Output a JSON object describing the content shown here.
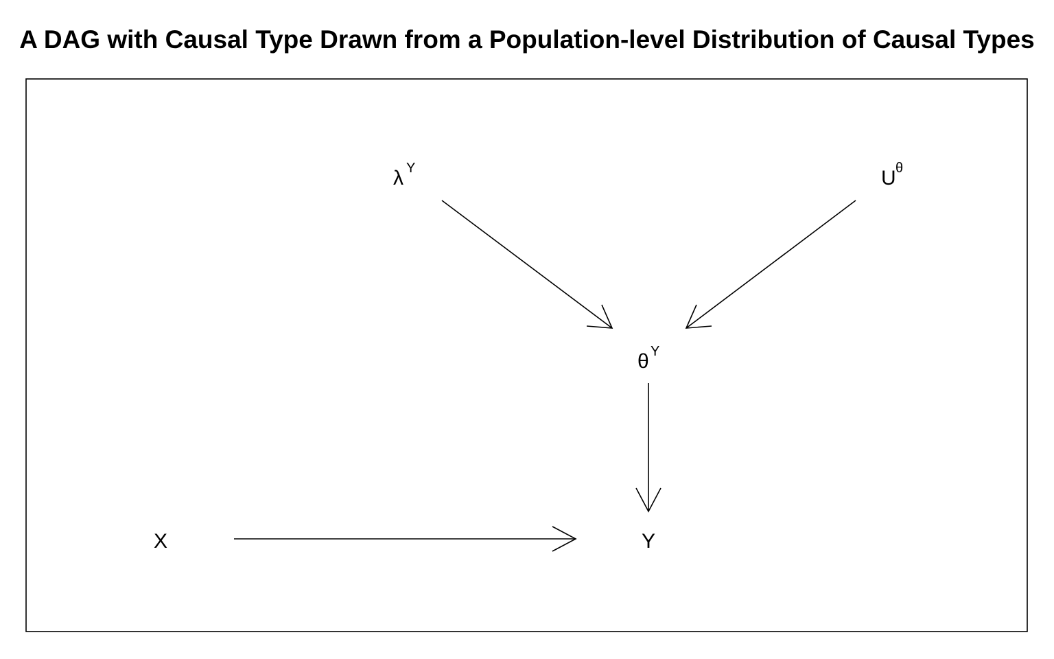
{
  "title": "A DAG with Causal Type Drawn from a Population-level Distribution of Causal Types",
  "nodes": {
    "lambda_y": {
      "base": "λ",
      "sup": "Y"
    },
    "u_theta": {
      "base": "U",
      "sup": "θ"
    },
    "theta_y": {
      "base": "θ",
      "sup": "Y"
    },
    "x": {
      "base": "X"
    },
    "y": {
      "base": "Y"
    }
  },
  "edges": [
    {
      "from": "lambda_y",
      "to": "theta_y"
    },
    {
      "from": "u_theta",
      "to": "theta_y"
    },
    {
      "from": "theta_y",
      "to": "y"
    },
    {
      "from": "x",
      "to": "y"
    }
  ]
}
